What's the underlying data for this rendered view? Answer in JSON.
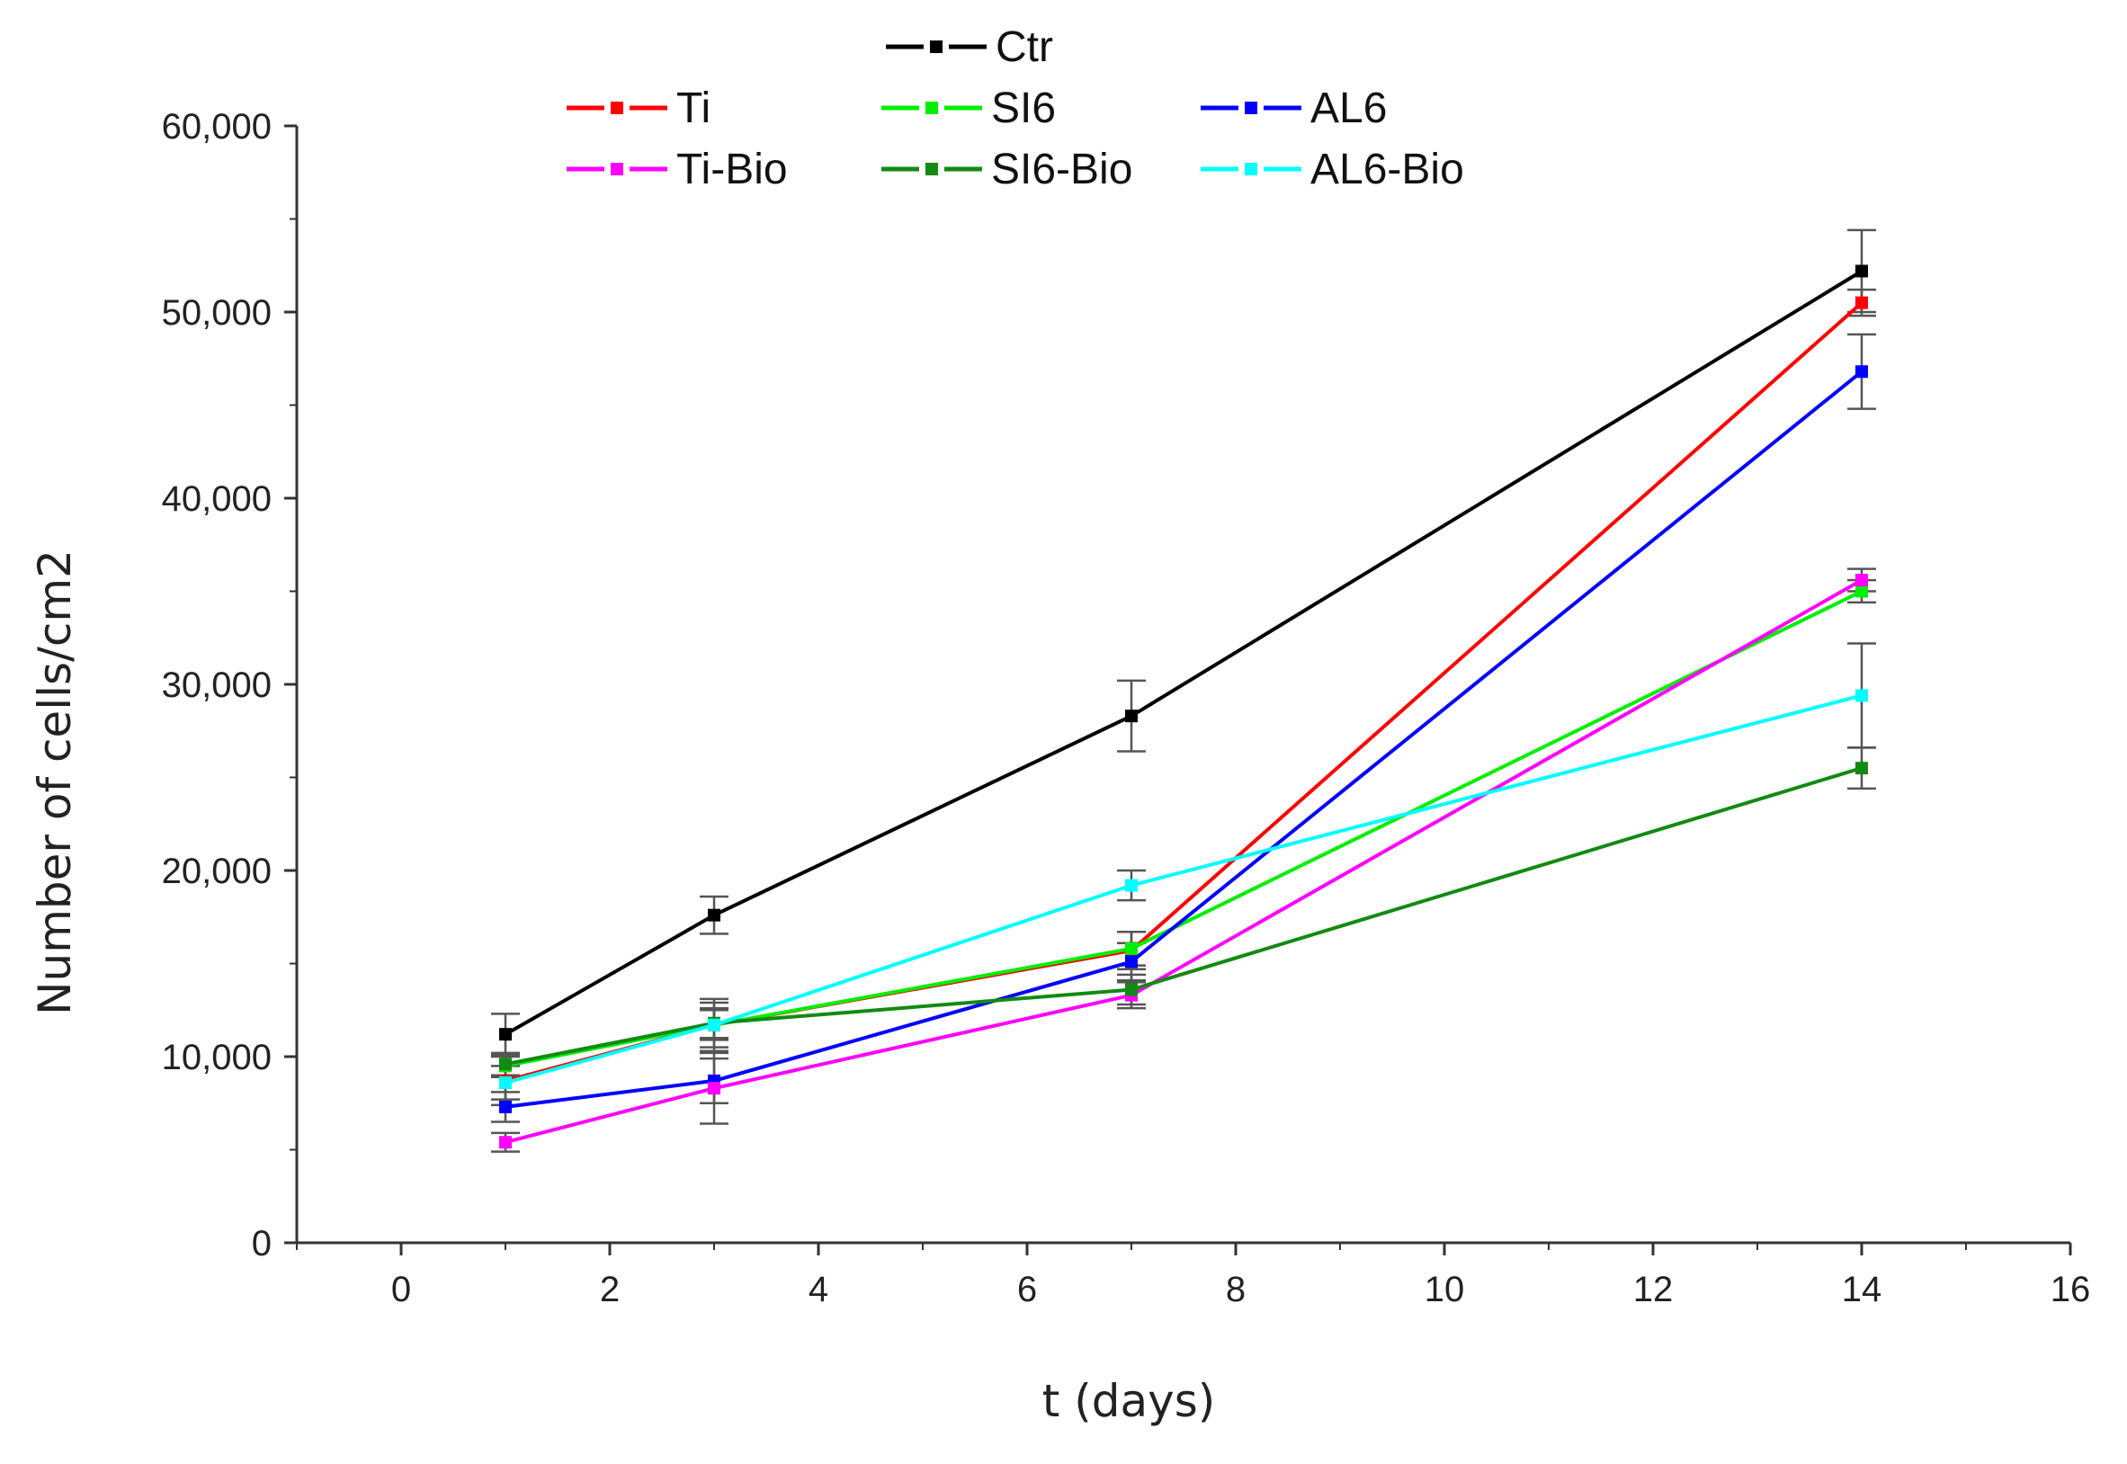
{
  "chart_data": {
    "type": "line",
    "title": "",
    "xlabel": "t (days)",
    "ylabel": "Number of cells/cm2",
    "xlim": [
      -1,
      16
    ],
    "ylim": [
      0,
      60000
    ],
    "x": [
      1,
      3,
      7,
      14
    ],
    "xticks": [
      0,
      2,
      4,
      6,
      8,
      10,
      12,
      14,
      16
    ],
    "xtick_labels": [
      "0",
      "2",
      "4",
      "6",
      "8",
      "10",
      "12",
      "14",
      "16"
    ],
    "yticks": [
      0,
      10000,
      20000,
      30000,
      40000,
      50000,
      60000
    ],
    "ytick_labels": [
      "0",
      "10,000",
      "20,000",
      "30,000",
      "40,000",
      "50,000",
      "60,000"
    ],
    "grid": false,
    "legend_position": "top",
    "series": [
      {
        "name": "Ctr",
        "color": "#000000",
        "values": [
          11200,
          17600,
          28300,
          52200
        ],
        "errors": [
          1100,
          1000,
          1900,
          2200
        ]
      },
      {
        "name": "Ti",
        "color": "#ff0000",
        "values": [
          8700,
          11700,
          15700,
          50500
        ],
        "errors": [
          1300,
          1400,
          1000,
          700
        ]
      },
      {
        "name": "SI6",
        "color": "#00ee00",
        "values": [
          9500,
          11700,
          15800,
          35000
        ],
        "errors": [
          600,
          1200,
          900,
          600
        ]
      },
      {
        "name": "AL6",
        "color": "#0000ff",
        "values": [
          7300,
          8700,
          15100,
          46800
        ],
        "errors": [
          800,
          1200,
          1000,
          2000
        ]
      },
      {
        "name": "Ti-Bio",
        "color": "#ff00ff",
        "values": [
          5400,
          8300,
          13300,
          35600
        ],
        "errors": [
          500,
          1900,
          700,
          600
        ]
      },
      {
        "name": "SI6-Bio",
        "color": "#138a13",
        "values": [
          9600,
          11800,
          13600,
          25500
        ],
        "errors": [
          600,
          800,
          800,
          1100
        ]
      },
      {
        "name": "AL6-Bio",
        "color": "#00ffff",
        "values": [
          8600,
          11700,
          19200,
          29400
        ],
        "errors": [
          900,
          800,
          800,
          2800
        ]
      }
    ]
  }
}
